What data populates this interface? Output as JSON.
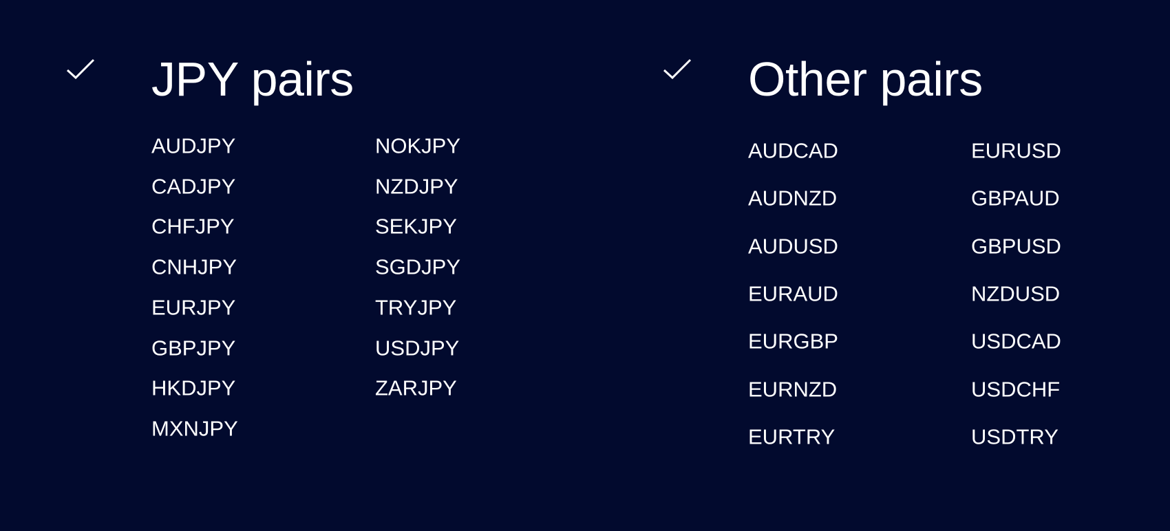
{
  "sections": [
    {
      "title": "JPY pairs",
      "icon": "checkmark-icon",
      "columns": [
        [
          "AUDJPY",
          "CADJPY",
          "CHFJPY",
          "CNHJPY",
          "EURJPY",
          "GBPJPY",
          "HKDJPY",
          "MXNJPY"
        ],
        [
          "NOKJPY",
          "NZDJPY",
          "SEKJPY",
          "SGDJPY",
          "TRYJPY",
          "USDJPY",
          "ZARJPY"
        ]
      ]
    },
    {
      "title": "Other pairs",
      "icon": "checkmark-icon",
      "columns": [
        [
          "AUDCAD",
          "AUDNZD",
          "AUDUSD",
          "EURAUD",
          "EURGBP",
          "EURNZD",
          "EURTRY"
        ],
        [
          "EURUSD",
          "GBPAUD",
          "GBPUSD",
          "NZDUSD",
          "USDCAD",
          "USDCHF",
          "USDTRY"
        ]
      ]
    }
  ],
  "colors": {
    "background": "#020a2e",
    "text": "#ffffff"
  }
}
